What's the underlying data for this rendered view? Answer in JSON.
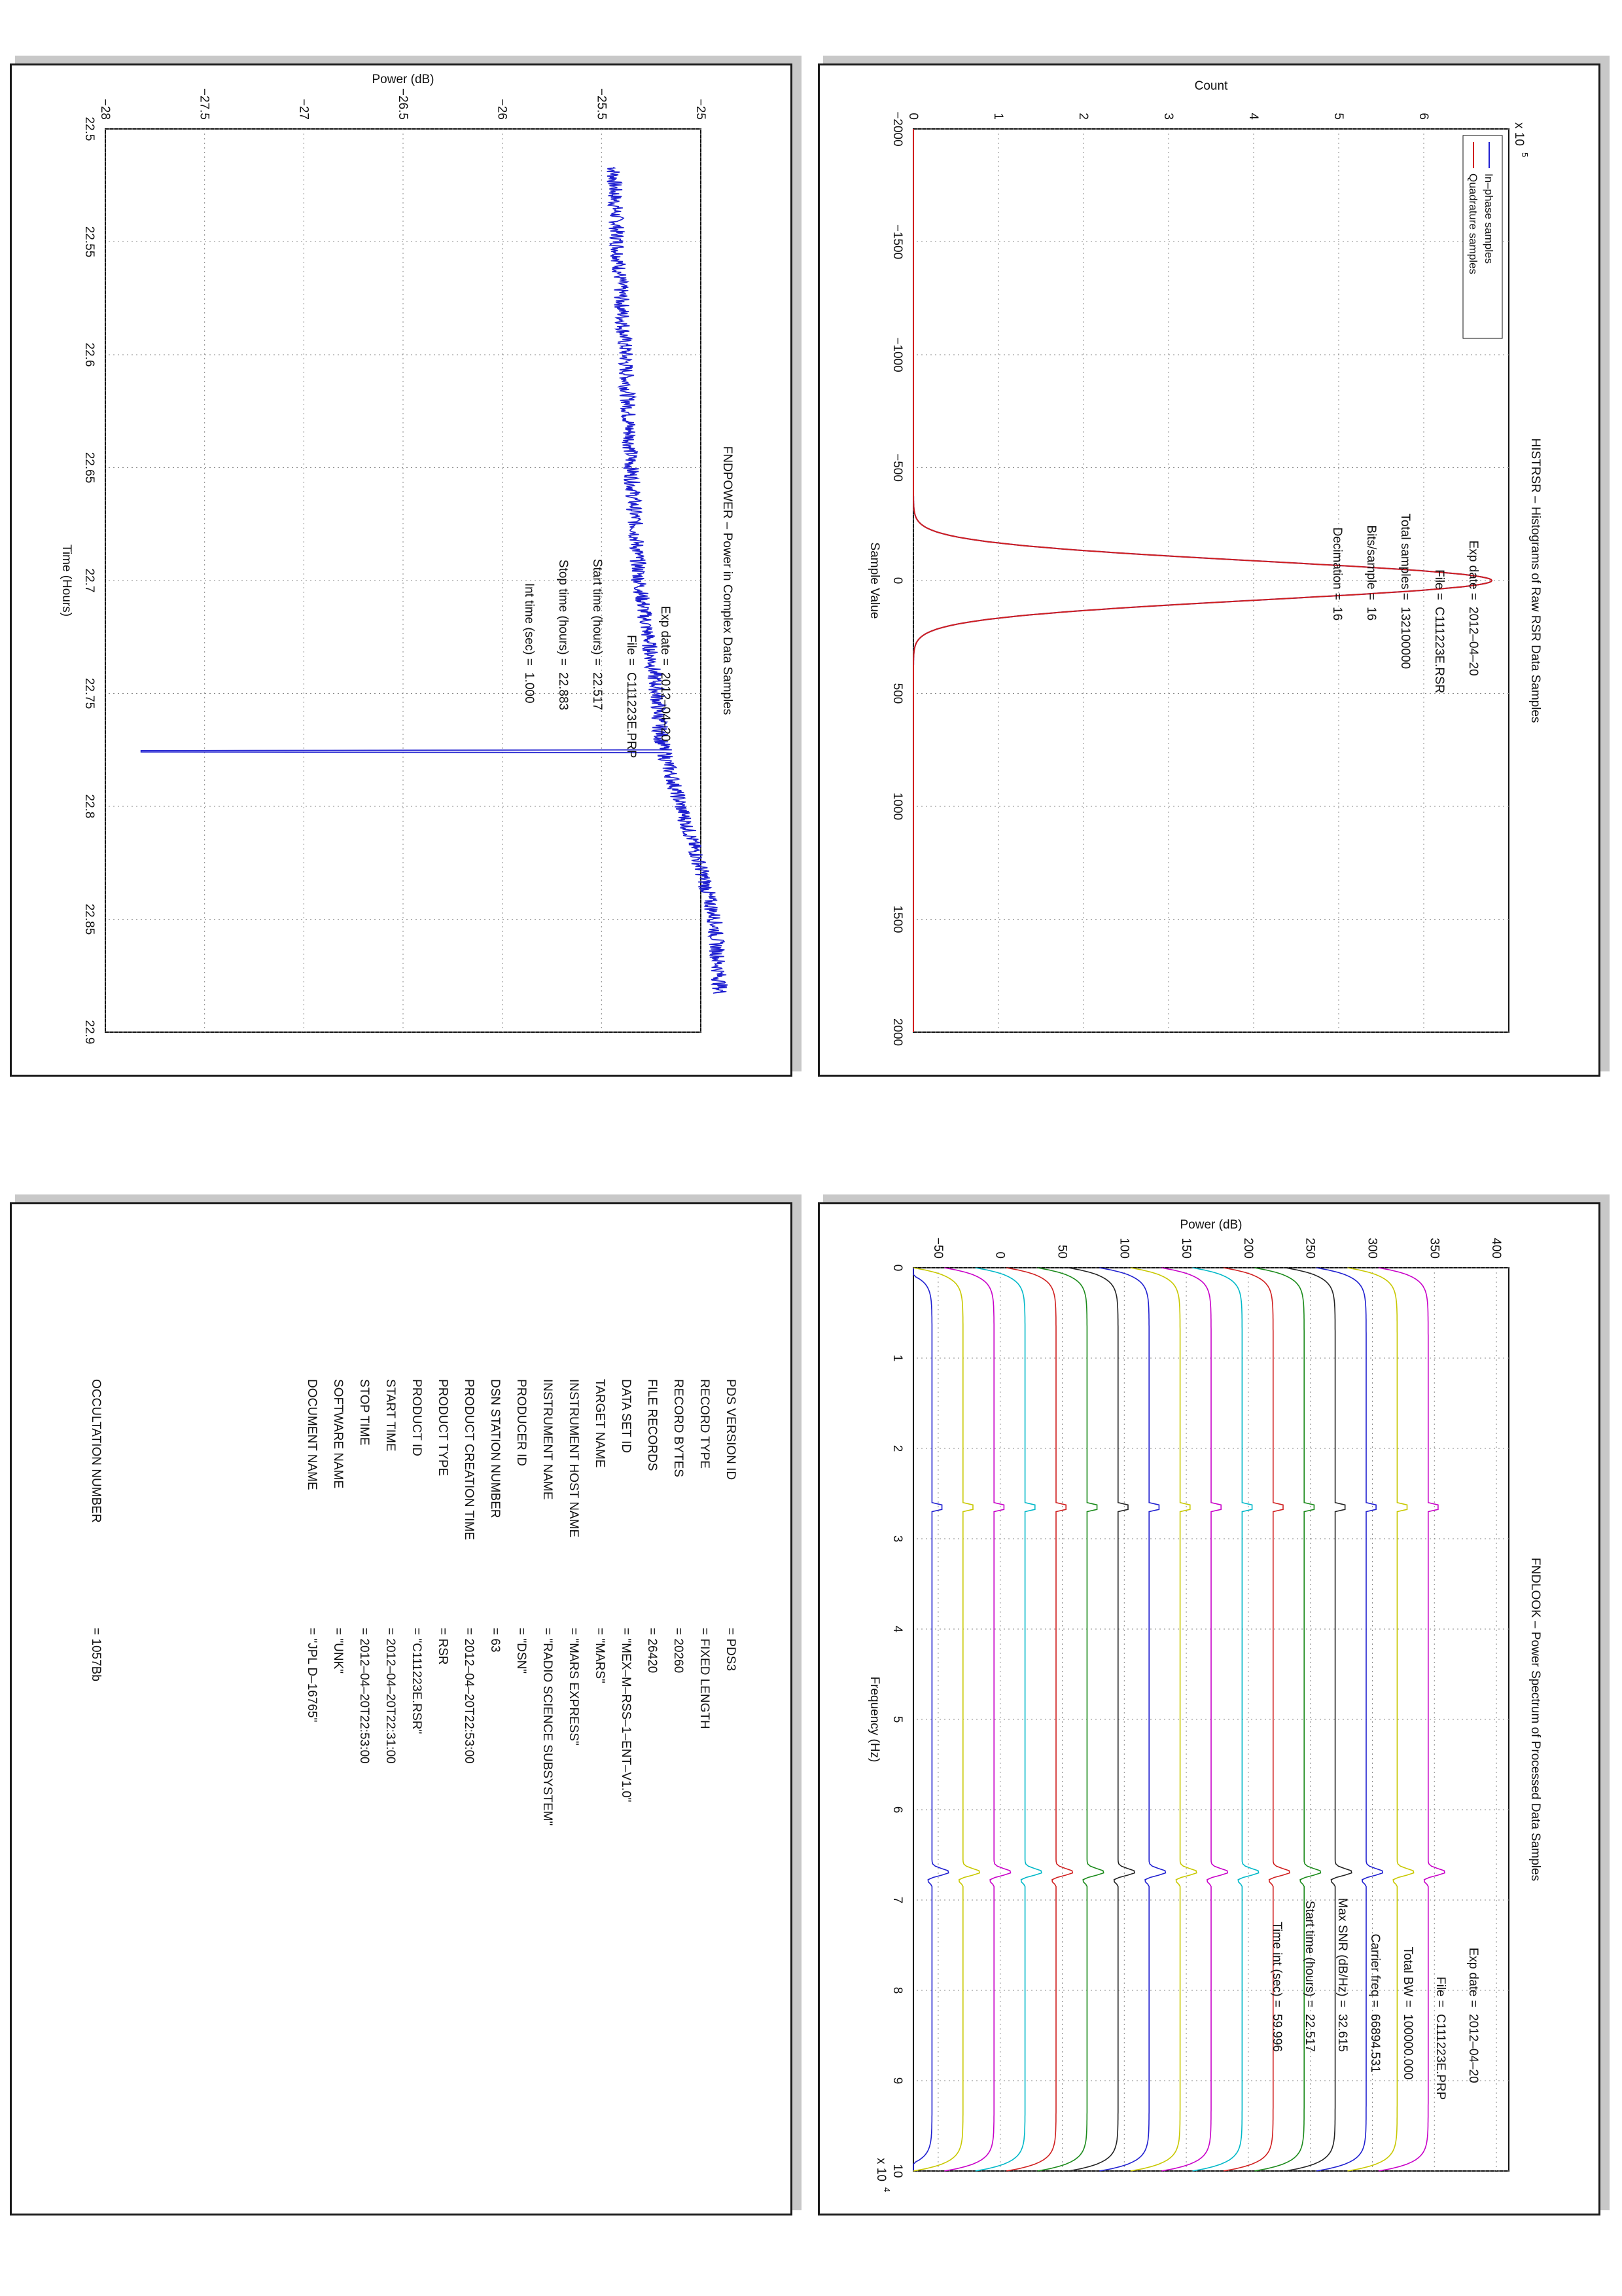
{
  "histogram": {
    "title": "HISTRSR – Histograms of Raw RSR Data Samples",
    "xlabel": "Sample Value",
    "ylabel": "Count",
    "y_exponent": "x 10",
    "y_exponent_power": "5",
    "legend": [
      "In–phase samples",
      "Quadrature samples"
    ],
    "colors": {
      "inphase": "#1f1fd0",
      "quadrature": "#d01f1f"
    },
    "info": [
      {
        "label": "Exp date =",
        "value": "2012–04–20"
      },
      {
        "label": "File =",
        "value": "C111223E.RSR"
      },
      {
        "label": "Total samples =",
        "value": "132100000"
      },
      {
        "label": "Bits/sample =",
        "value": "16"
      },
      {
        "label": "Decimation =",
        "value": "16"
      }
    ],
    "x_ticks": [
      "−2000",
      "−1500",
      "−1000",
      "−500",
      "0",
      "500",
      "1000",
      "1500",
      "2000"
    ],
    "y_ticks": [
      "0",
      "1",
      "2",
      "3",
      "4",
      "5",
      "6"
    ]
  },
  "fndpower": {
    "title": "FNDPOWER – Power in Complex Data Samples",
    "xlabel": "Time (Hours)",
    "ylabel": "Power (dB)",
    "info": [
      {
        "label": "Exp date =",
        "value": "2012–04–20"
      },
      {
        "label": "File =",
        "value": "C111223E.PRP"
      },
      {
        "label": "Start time (hours) =",
        "value": "22.517"
      },
      {
        "label": "Stop time (hours) =",
        "value": "22.883"
      },
      {
        "label": "Int time (sec) =",
        "value": "1.000"
      }
    ],
    "x_ticks": [
      "22.5",
      "22.55",
      "22.6",
      "22.65",
      "22.7",
      "22.75",
      "22.8",
      "22.85",
      "22.9"
    ],
    "y_ticks": [
      "−28",
      "−27.5",
      "−27",
      "−26.5",
      "−26",
      "−25.5",
      "−25"
    ]
  },
  "fndlook": {
    "title": "FNDLOOK – Power Spectrum of Processed Data Samples",
    "xlabel": "Frequency (Hz)",
    "ylabel": "Power (dB)",
    "x_exponent": "x 10",
    "x_exponent_power": "4",
    "info": [
      {
        "label": "Exp date =",
        "value": "2012–04–20"
      },
      {
        "label": "File =",
        "value": "C111223E.PRP"
      },
      {
        "label": "Total BW =",
        "value": "100000.000"
      },
      {
        "label": "Carrier freq =",
        "value": "66894.531"
      },
      {
        "label": "Max SNR (dB/Hz) =",
        "value": "32.615"
      },
      {
        "label": "Start time (hours) =",
        "value": "22.517"
      },
      {
        "label": "Time int (sec) =",
        "value": "59.996"
      }
    ],
    "x_ticks": [
      "0",
      "1",
      "2",
      "3",
      "4",
      "5",
      "6",
      "7",
      "8",
      "9",
      "10"
    ],
    "y_ticks": [
      "−50",
      "0",
      "50",
      "100",
      "150",
      "200",
      "250",
      "300",
      "350",
      "400"
    ],
    "colors": [
      "#1f1fd0",
      "#c8c800",
      "#c800c8",
      "#00b8c8",
      "#d01f1f",
      "#1a8a1a",
      "#222222"
    ]
  },
  "label_table": {
    "rows": [
      {
        "key": "PDS VERSION ID",
        "value": "= PDS3"
      },
      {
        "key": "RECORD TYPE",
        "value": "= FIXED LENGTH"
      },
      {
        "key": "RECORD BYTES",
        "value": "= 20260"
      },
      {
        "key": "FILE RECORDS",
        "value": "= 26420"
      },
      {
        "key": "DATA SET ID",
        "value": "= \"MEX–M–RSS–1–ENT–V1.0\""
      },
      {
        "key": "TARGET NAME",
        "value": "= \"MARS\""
      },
      {
        "key": "INSTRUMENT HOST NAME",
        "value": "= \"MARS EXPRESS\""
      },
      {
        "key": "INSTRUMENT NAME",
        "value": "= \"RADIO SCIENCE SUBSYSTEM\""
      },
      {
        "key": "PRODUCER ID",
        "value": "= \"DSN\""
      },
      {
        "key": "DSN STATION NUMBER",
        "value": "= 63"
      },
      {
        "key": "PRODUCT CREATION TIME",
        "value": "= 2012–04–20T22:53:00"
      },
      {
        "key": "PRODUCT TYPE",
        "value": "= RSR"
      },
      {
        "key": "PRODUCT ID",
        "value": "= \"C111223E.RSR\""
      },
      {
        "key": "START TIME",
        "value": "= 2012–04–20T22:31:00"
      },
      {
        "key": "STOP TIME",
        "value": "= 2012–04–20T22:53:00"
      },
      {
        "key": "SOFTWARE NAME",
        "value": "= \"UNK\""
      },
      {
        "key": "DOCUMENT NAME",
        "value": "= \"JPL D–16765\""
      }
    ],
    "occultation": {
      "key": "OCCULTATION NUMBER",
      "value": "= 1057Bb"
    }
  },
  "chart_data": [
    {
      "type": "line",
      "title": "HISTRSR – Histograms of Raw RSR Data Samples",
      "xlabel": "Sample Value",
      "ylabel": "Count",
      "xlim": [
        -2000,
        2000
      ],
      "ylim": [
        0,
        700000
      ],
      "series": [
        {
          "name": "In–phase samples",
          "shape": "gaussian",
          "peak": 680000,
          "center": 0,
          "sigma": 85
        },
        {
          "name": "Quadrature samples",
          "shape": "gaussian",
          "peak": 680000,
          "center": 0,
          "sigma": 85
        }
      ]
    },
    {
      "type": "line",
      "title": "FNDPOWER – Power in Complex Data Samples",
      "xlabel": "Time (Hours)",
      "ylabel": "Power (dB)",
      "xlim": [
        22.5,
        22.9
      ],
      "ylim": [
        -28,
        -25
      ],
      "series": [
        {
          "name": "",
          "x": [
            22.517,
            22.55,
            22.6,
            22.65,
            22.7,
            22.75,
            22.77,
            22.775,
            22.78,
            22.8,
            22.83,
            22.85,
            22.883
          ],
          "y": [
            -25.44,
            -25.42,
            -25.38,
            -25.35,
            -25.31,
            -25.22,
            -25.2,
            -27.82,
            -25.17,
            -25.1,
            -24.99,
            -24.93,
            -24.9
          ]
        }
      ]
    },
    {
      "type": "line",
      "title": "FNDLOOK – Power Spectrum of Processed Data Samples",
      "xlabel": "Frequency (Hz)",
      "ylabel": "Power (dB)",
      "xlim": [
        0,
        100000
      ],
      "ylim": [
        -70,
        410
      ],
      "series_offsets": [
        -55,
        -30,
        -5,
        20,
        45,
        70,
        95,
        120,
        145,
        170,
        195,
        220,
        245,
        270,
        295,
        320,
        345
      ],
      "carrier_freq": 66894.531,
      "spur_freq": 26500
    }
  ]
}
